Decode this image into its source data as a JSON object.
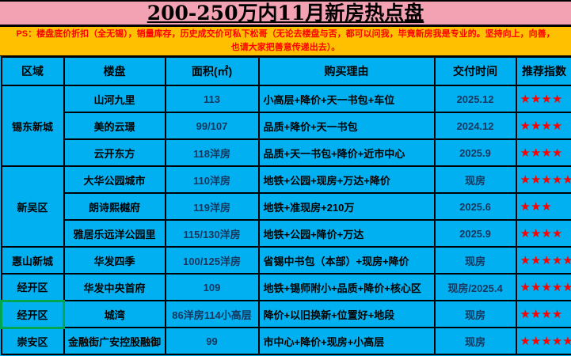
{
  "title": "200-250万内11月新房热点盘",
  "ps_note": {
    "line1": "PS：楼盘底价折扣（全无锡），销量库存，历史成交价可私下松哥（无论去楼盘与否，都可以问我，毕竟新房我是专业的。坚持向上，向善，",
    "line2": "也请大家把善意传递出去）。"
  },
  "colors": {
    "title_bg": "#F2A2B2",
    "title_text": "#000000",
    "ps_bg": "#FFC000",
    "ps_text": "#FF0000",
    "table_bg": "#00B0F0",
    "border": "#000000",
    "star": "#FF0000",
    "number_text": "#17375E",
    "highlight_border": "#00A650"
  },
  "table": {
    "headers": [
      "区域",
      "楼盘",
      "面积(㎡)",
      "购买理由",
      "交付时间",
      "推荐指数"
    ],
    "star_glyph": "★",
    "rows": [
      {
        "region": "锡东新城",
        "region_span": 3,
        "name": "山河九里",
        "area": "113",
        "reason": "小高层+降价+天一书包+车位",
        "delivery": "2025.12",
        "stars": 4
      },
      {
        "name": "美的云璟",
        "area": "99/107",
        "reason": "品质+降价+天一书包",
        "delivery": "2024.12",
        "stars": 4
      },
      {
        "name": "云开东方",
        "area": "118洋房",
        "reason": "品质+天一书包+降价+近市中心",
        "delivery": "2025.9",
        "stars": 4
      },
      {
        "region": "新吴区",
        "region_span": 3,
        "name": "大华公园城市",
        "area": "110洋房",
        "reason": "地铁+公园+现房+万达+降价",
        "delivery": "现房",
        "stars": 5
      },
      {
        "name": "朗诗熙樾府",
        "area": "119洋房",
        "reason": "地铁+准现房+210万",
        "delivery": "2025.6",
        "stars": 3
      },
      {
        "name": "雅居乐远洋公园里",
        "area": "115/130洋房",
        "reason": "地铁+公园+降价+万达",
        "delivery": "2025.9",
        "stars": 4
      },
      {
        "region": "惠山新城",
        "region_span": 1,
        "name": "华发四季",
        "area": "100/125洋房",
        "reason": "省锡中书包（本部）+现房+降价",
        "delivery": "现房",
        "stars": 5
      },
      {
        "region": "经开区",
        "region_span": 1,
        "name": "华发中央首府",
        "area": "109",
        "reason": "地铁+锡师附小+品质+降价+核心区",
        "delivery": "现房/2025.4",
        "stars": 5
      },
      {
        "region": "经开区",
        "region_span": 1,
        "region_highlight": true,
        "name": "城湾",
        "area": "86洋房114小高层",
        "reason": "降价+以旧换新+位置好+地段",
        "delivery": "现房",
        "stars": 4
      },
      {
        "region": "崇安区",
        "region_span": 1,
        "name": "金融街广安控股融御",
        "area": "99",
        "reason": "市中心+降价+现房+小高层",
        "delivery": "现房",
        "stars": 5
      }
    ]
  }
}
